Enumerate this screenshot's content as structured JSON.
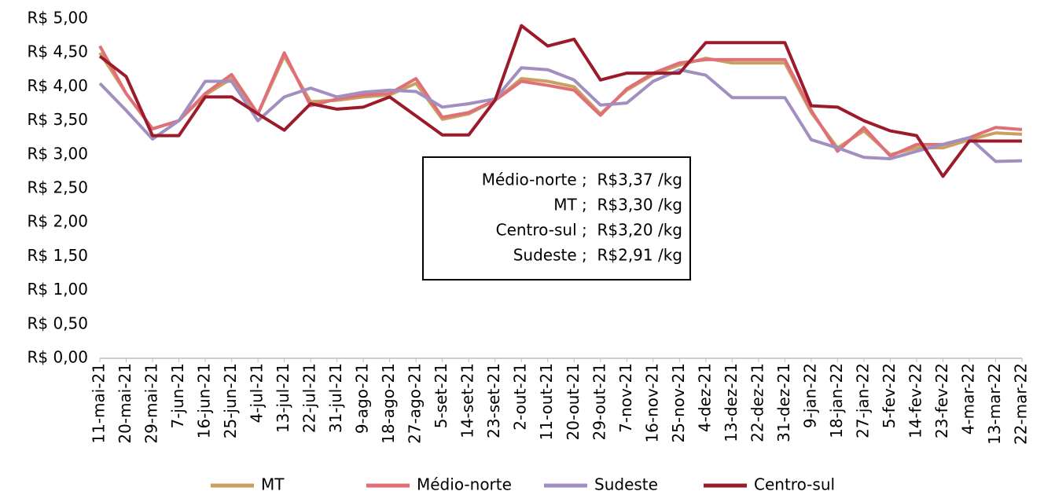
{
  "chart_data": {
    "type": "line",
    "categories": [
      "11-mai-21",
      "20-mai-21",
      "29-mai-21",
      "7-jun-21",
      "16-jun-21",
      "25-jun-21",
      "4-jul-21",
      "13-jul-21",
      "22-jul-21",
      "31-jul-21",
      "9-ago-21",
      "18-ago-21",
      "27-ago-21",
      "5-set-21",
      "14-set-21",
      "23-set-21",
      "2-out-21",
      "11-out-21",
      "20-out-21",
      "29-out-21",
      "7-nov-21",
      "16-nov-21",
      "25-nov-21",
      "4-dez-21",
      "13-dez-21",
      "22-dez-21",
      "31-dez-21",
      "9-jan-22",
      "18-jan-22",
      "27-jan-22",
      "5-fev-22",
      "14-fev-22",
      "23-fev-22",
      "4-mar-22",
      "13-mar-22",
      "22-mar-22"
    ],
    "series": [
      {
        "name": "MT",
        "color": "#c9a060",
        "values": [
          4.5,
          3.9,
          3.38,
          3.5,
          3.88,
          4.12,
          3.6,
          4.45,
          3.78,
          3.8,
          3.85,
          3.88,
          4.05,
          3.52,
          3.6,
          3.8,
          4.12,
          4.08,
          4.0,
          3.6,
          3.95,
          4.18,
          4.32,
          4.42,
          4.35,
          4.35,
          4.35,
          3.62,
          3.1,
          3.35,
          3.0,
          3.1,
          3.1,
          3.22,
          3.32,
          3.3
        ]
      },
      {
        "name": "Médio-norte",
        "color": "#e07078",
        "values": [
          4.6,
          3.9,
          3.38,
          3.5,
          3.9,
          4.18,
          3.6,
          4.5,
          3.72,
          3.82,
          3.88,
          3.9,
          4.12,
          3.55,
          3.62,
          3.8,
          4.08,
          4.02,
          3.95,
          3.58,
          3.97,
          4.2,
          4.35,
          4.4,
          4.4,
          4.4,
          4.4,
          3.65,
          3.05,
          3.4,
          2.98,
          3.15,
          3.15,
          3.25,
          3.4,
          3.37
        ]
      },
      {
        "name": "Sudeste",
        "color": "#a08fc0",
        "values": [
          4.05,
          3.65,
          3.23,
          3.5,
          4.08,
          4.08,
          3.5,
          3.85,
          3.98,
          3.85,
          3.92,
          3.95,
          3.93,
          3.7,
          3.75,
          3.82,
          4.28,
          4.25,
          4.1,
          3.73,
          3.76,
          4.08,
          4.25,
          4.17,
          3.84,
          3.84,
          3.84,
          3.22,
          3.1,
          2.96,
          2.94,
          3.05,
          3.15,
          3.25,
          2.9,
          2.91
        ]
      },
      {
        "name": "Centro-sul",
        "color": "#9b1b2a",
        "values": [
          4.45,
          4.15,
          3.28,
          3.28,
          3.85,
          3.85,
          3.6,
          3.36,
          3.75,
          3.67,
          3.7,
          3.85,
          3.57,
          3.29,
          3.29,
          3.8,
          4.9,
          4.6,
          4.7,
          4.1,
          4.2,
          4.2,
          4.2,
          4.65,
          4.65,
          4.65,
          4.65,
          3.72,
          3.7,
          3.5,
          3.35,
          3.28,
          2.68,
          3.2,
          3.2,
          3.2
        ]
      }
    ],
    "ylim": [
      0,
      5
    ],
    "yticks": [
      {
        "value": 0,
        "label": "R$ 0,00"
      },
      {
        "value": 0.5,
        "label": "R$ 0,50"
      },
      {
        "value": 1,
        "label": "R$ 1,00"
      },
      {
        "value": 1.5,
        "label": "R$ 1,50"
      },
      {
        "value": 2,
        "label": "R$ 2,00"
      },
      {
        "value": 2.5,
        "label": "R$ 2,50"
      },
      {
        "value": 3,
        "label": "R$ 3,00"
      },
      {
        "value": 3.5,
        "label": "R$ 3,50"
      },
      {
        "value": 4,
        "label": "R$ 4,00"
      },
      {
        "value": 4.5,
        "label": "R$ 4,50"
      },
      {
        "value": 5,
        "label": "R$ 5,00"
      }
    ],
    "annotation": [
      "Médio-norte ;  R$3,37 /kg",
      "MT ;  R$3,30 /kg",
      "Centro-sul ;  R$3,20 /kg",
      "Sudeste ;  R$2,91 /kg"
    ],
    "legend": "bottom"
  }
}
